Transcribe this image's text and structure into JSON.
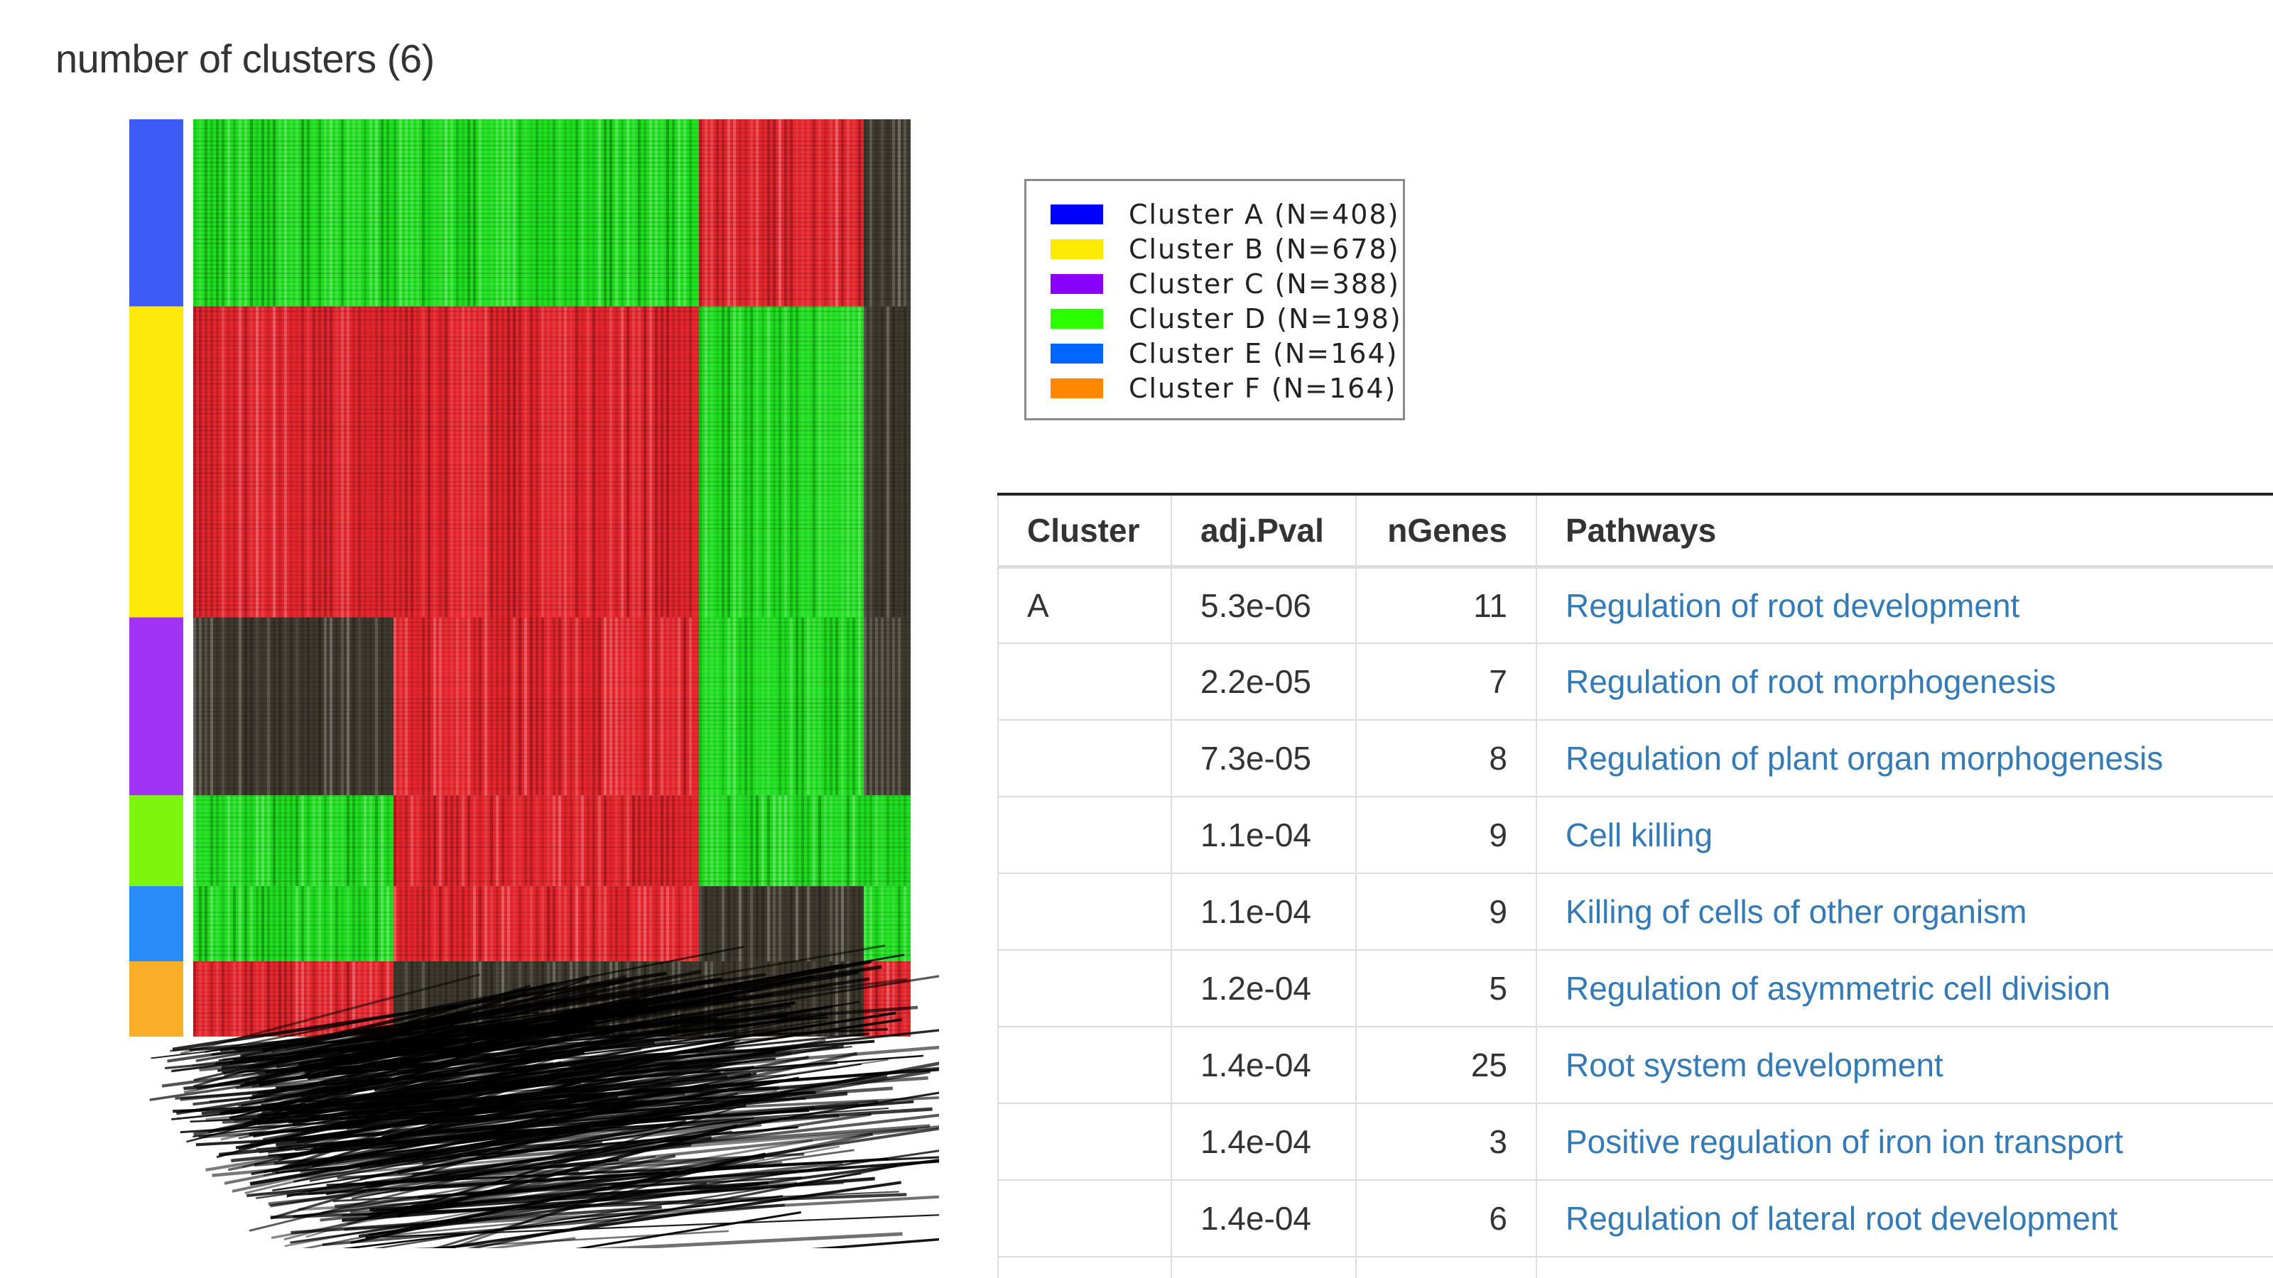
{
  "page": {
    "title": "number of clusters (6)"
  },
  "heatmap": {
    "colors": {
      "high": "#e8262e",
      "low": "#1fe11f",
      "mid": "#3f3a2f"
    },
    "clusters": [
      {
        "name": "A",
        "n": 408,
        "color": "#3d5cf5"
      },
      {
        "name": "B",
        "n": 678,
        "color": "#ffe90a"
      },
      {
        "name": "C",
        "n": 388,
        "color": "#a033f5"
      },
      {
        "name": "D",
        "n": 198,
        "color": "#7ef50f"
      },
      {
        "name": "E",
        "n": 164,
        "color": "#2a8cfb"
      },
      {
        "name": "F",
        "n": 164,
        "color": "#fbae2a"
      }
    ],
    "column_groups": [
      {
        "pattern": [
          "green",
          "red",
          "mid",
          "green",
          "green",
          "red"
        ]
      },
      {
        "pattern": [
          "green",
          "red",
          "red",
          "red",
          "red",
          "mid"
        ]
      },
      {
        "pattern": [
          "red",
          "green",
          "green",
          "green",
          "mid",
          "mid"
        ]
      },
      {
        "pattern": [
          "mid",
          "mid",
          "mid",
          "green",
          "green",
          "red"
        ]
      }
    ]
  },
  "legend": {
    "items": [
      {
        "label": "Cluster A (N=408)",
        "color": "#0000ff"
      },
      {
        "label": "Cluster B (N=678)",
        "color": "#ffea00"
      },
      {
        "label": "Cluster C (N=388)",
        "color": "#8a00ff"
      },
      {
        "label": "Cluster D (N=198)",
        "color": "#2bff00"
      },
      {
        "label": "Cluster E (N=164)",
        "color": "#0066ff"
      },
      {
        "label": "Cluster F (N=164)",
        "color": "#ff8800"
      }
    ]
  },
  "table": {
    "headers": {
      "cluster": "Cluster",
      "pval": "adj.Pval",
      "ngenes": "nGenes",
      "pathways": "Pathways"
    },
    "rows": [
      {
        "cluster": "A",
        "pval": "5.3e-06",
        "ngenes": "11",
        "pathway": "Regulation of root development"
      },
      {
        "cluster": "",
        "pval": "2.2e-05",
        "ngenes": "7",
        "pathway": "Regulation of root morphogenesis"
      },
      {
        "cluster": "",
        "pval": "7.3e-05",
        "ngenes": "8",
        "pathway": "Regulation of plant organ morphogenesis"
      },
      {
        "cluster": "",
        "pval": "1.1e-04",
        "ngenes": "9",
        "pathway": "Cell killing"
      },
      {
        "cluster": "",
        "pval": "1.1e-04",
        "ngenes": "9",
        "pathway": "Killing of cells of other organism"
      },
      {
        "cluster": "",
        "pval": "1.2e-04",
        "ngenes": "5",
        "pathway": "Regulation of asymmetric cell division"
      },
      {
        "cluster": "",
        "pval": "1.4e-04",
        "ngenes": "25",
        "pathway": "Root system development"
      },
      {
        "cluster": "",
        "pval": "1.4e-04",
        "ngenes": "3",
        "pathway": "Positive regulation of iron ion transport"
      },
      {
        "cluster": "",
        "pval": "1.4e-04",
        "ngenes": "6",
        "pathway": "Regulation of lateral root development"
      },
      {
        "cluster": "",
        "pval": "",
        "ngenes": "",
        "pathway": ""
      }
    ]
  }
}
